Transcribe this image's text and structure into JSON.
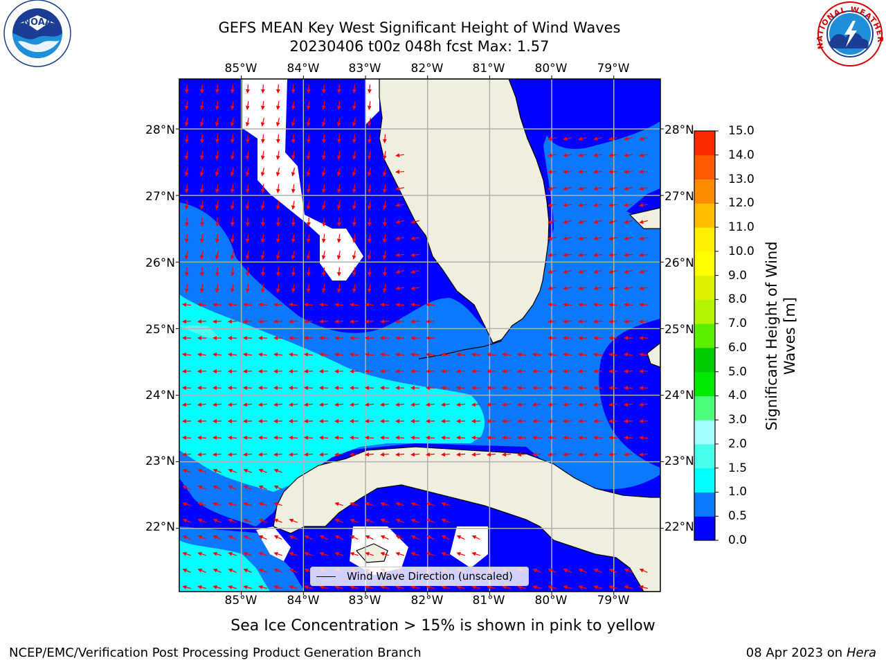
{
  "title": {
    "line1": "GEFS MEAN Key West Significant Height of Wind Waves",
    "line2": "20230406 t00z 048h fcst   Max: 1.57"
  },
  "map": {
    "lon_labels": [
      "85°W",
      "84°W",
      "83°W",
      "82°W",
      "81°W",
      "80°W",
      "79°W"
    ],
    "lat_labels": [
      "28°N",
      "27°N",
      "26°N",
      "25°N",
      "24°N",
      "23°N",
      "22°N"
    ],
    "lon_range": [
      -86.0,
      -78.25
    ],
    "lat_range": [
      21.05,
      28.75
    ],
    "land_color": "#efefdf",
    "coast_color": "#000000",
    "grid_color": "#b0b0b0",
    "arrow_color": "#ff0000"
  },
  "legend": {
    "label": "Wind Wave Direction (unscaled)"
  },
  "colorbar": {
    "title": "Significant Height of Wind Waves [m]",
    "tick_labels": [
      "0.0",
      "0.5",
      "1.0",
      "1.5",
      "2.0",
      "3.0",
      "4.0",
      "5.0",
      "6.0",
      "7.0",
      "8.0",
      "9.0",
      "10.0",
      "11.0",
      "12.0",
      "13.0",
      "14.0",
      "15.0"
    ],
    "levels": [
      0,
      0.5,
      1,
      1.5,
      2,
      3,
      4,
      5,
      6,
      7,
      8,
      9,
      10,
      11,
      12,
      13,
      14,
      15
    ],
    "colors": [
      "#0000ff",
      "#0a78ff",
      "#00ffff",
      "#47ffea",
      "#a6ffff",
      "#4dff7d",
      "#00e800",
      "#00cc00",
      "#5cef00",
      "#b4f400",
      "#dcf000",
      "#ffff00",
      "#fff000",
      "#ffbe00",
      "#ff8c00",
      "#ff5a00",
      "#ff2a00"
    ]
  },
  "footer": {
    "note": "Sea Ice Concentration > 15% is shown in pink to yellow",
    "left": "NCEP/EMC/Verification Post Processing Product Generation Branch",
    "right_prefix": "08 Apr 2023 on ",
    "right_machine": "Hera"
  },
  "logos": {
    "noaa_text": "NOAA",
    "nws_text": "NATIONAL WEATHER SERVICE"
  }
}
